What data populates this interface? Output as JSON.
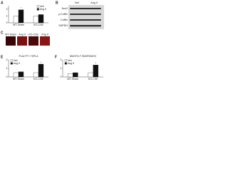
{
  "chart_data": [
    {
      "type": "bar",
      "label": "A",
      "title": "",
      "categories": [
        "WT-Sham",
        "KO-CSE"
      ],
      "series": [
        {
          "name": "Veh",
          "color": "#ffffff",
          "values": [
            1.0,
            1.0
          ]
        },
        {
          "name": "Ang II",
          "color": "#111111",
          "values": [
            1.9,
            1.2
          ]
        }
      ],
      "annotation": "*",
      "ylim": [
        0,
        2.5
      ],
      "yticks": [
        0,
        1,
        2
      ],
      "legend": "upper right"
    },
    {
      "type": "bar",
      "label": "E",
      "title": "PLA2 PT / TSPLA",
      "categories": [
        "WT-Sham",
        "KO-CSE"
      ],
      "series": [
        {
          "name": "Veh",
          "color": "#ffffff",
          "values": [
            0.5,
            0.5
          ]
        },
        {
          "name": "Ang II",
          "color": "#111111",
          "values": [
            0.6,
            1.5
          ]
        }
      ],
      "annotation": "*",
      "ylim": [
        0,
        2
      ],
      "yticks": [
        0,
        1,
        2
      ],
      "legend": "upper left"
    },
    {
      "type": "bar",
      "label": "F",
      "title": "NMGFG-F SMOROMOV",
      "categories": [
        "WT-Sham",
        "KO-CSE"
      ],
      "series": [
        {
          "name": "Veh",
          "color": "#ffffff",
          "values": [
            0.4,
            0.5
          ]
        },
        {
          "name": "Ang II",
          "color": "#111111",
          "values": [
            0.5,
            1.4
          ]
        }
      ],
      "annotation": "*",
      "ylim": [
        0,
        2
      ],
      "yticks": [
        0,
        1,
        2
      ],
      "legend": "upper left"
    }
  ],
  "blot": {
    "label": "B",
    "columns": [
      "Veh",
      "Ang II"
    ],
    "rows": [
      "Nox2",
      "p-Cofilin",
      "Cofilin",
      "GAPDH"
    ]
  },
  "images": {
    "label": "C",
    "captions": [
      "WT-Sham",
      "Ang II",
      "KO-CSE",
      "Ang II"
    ]
  }
}
